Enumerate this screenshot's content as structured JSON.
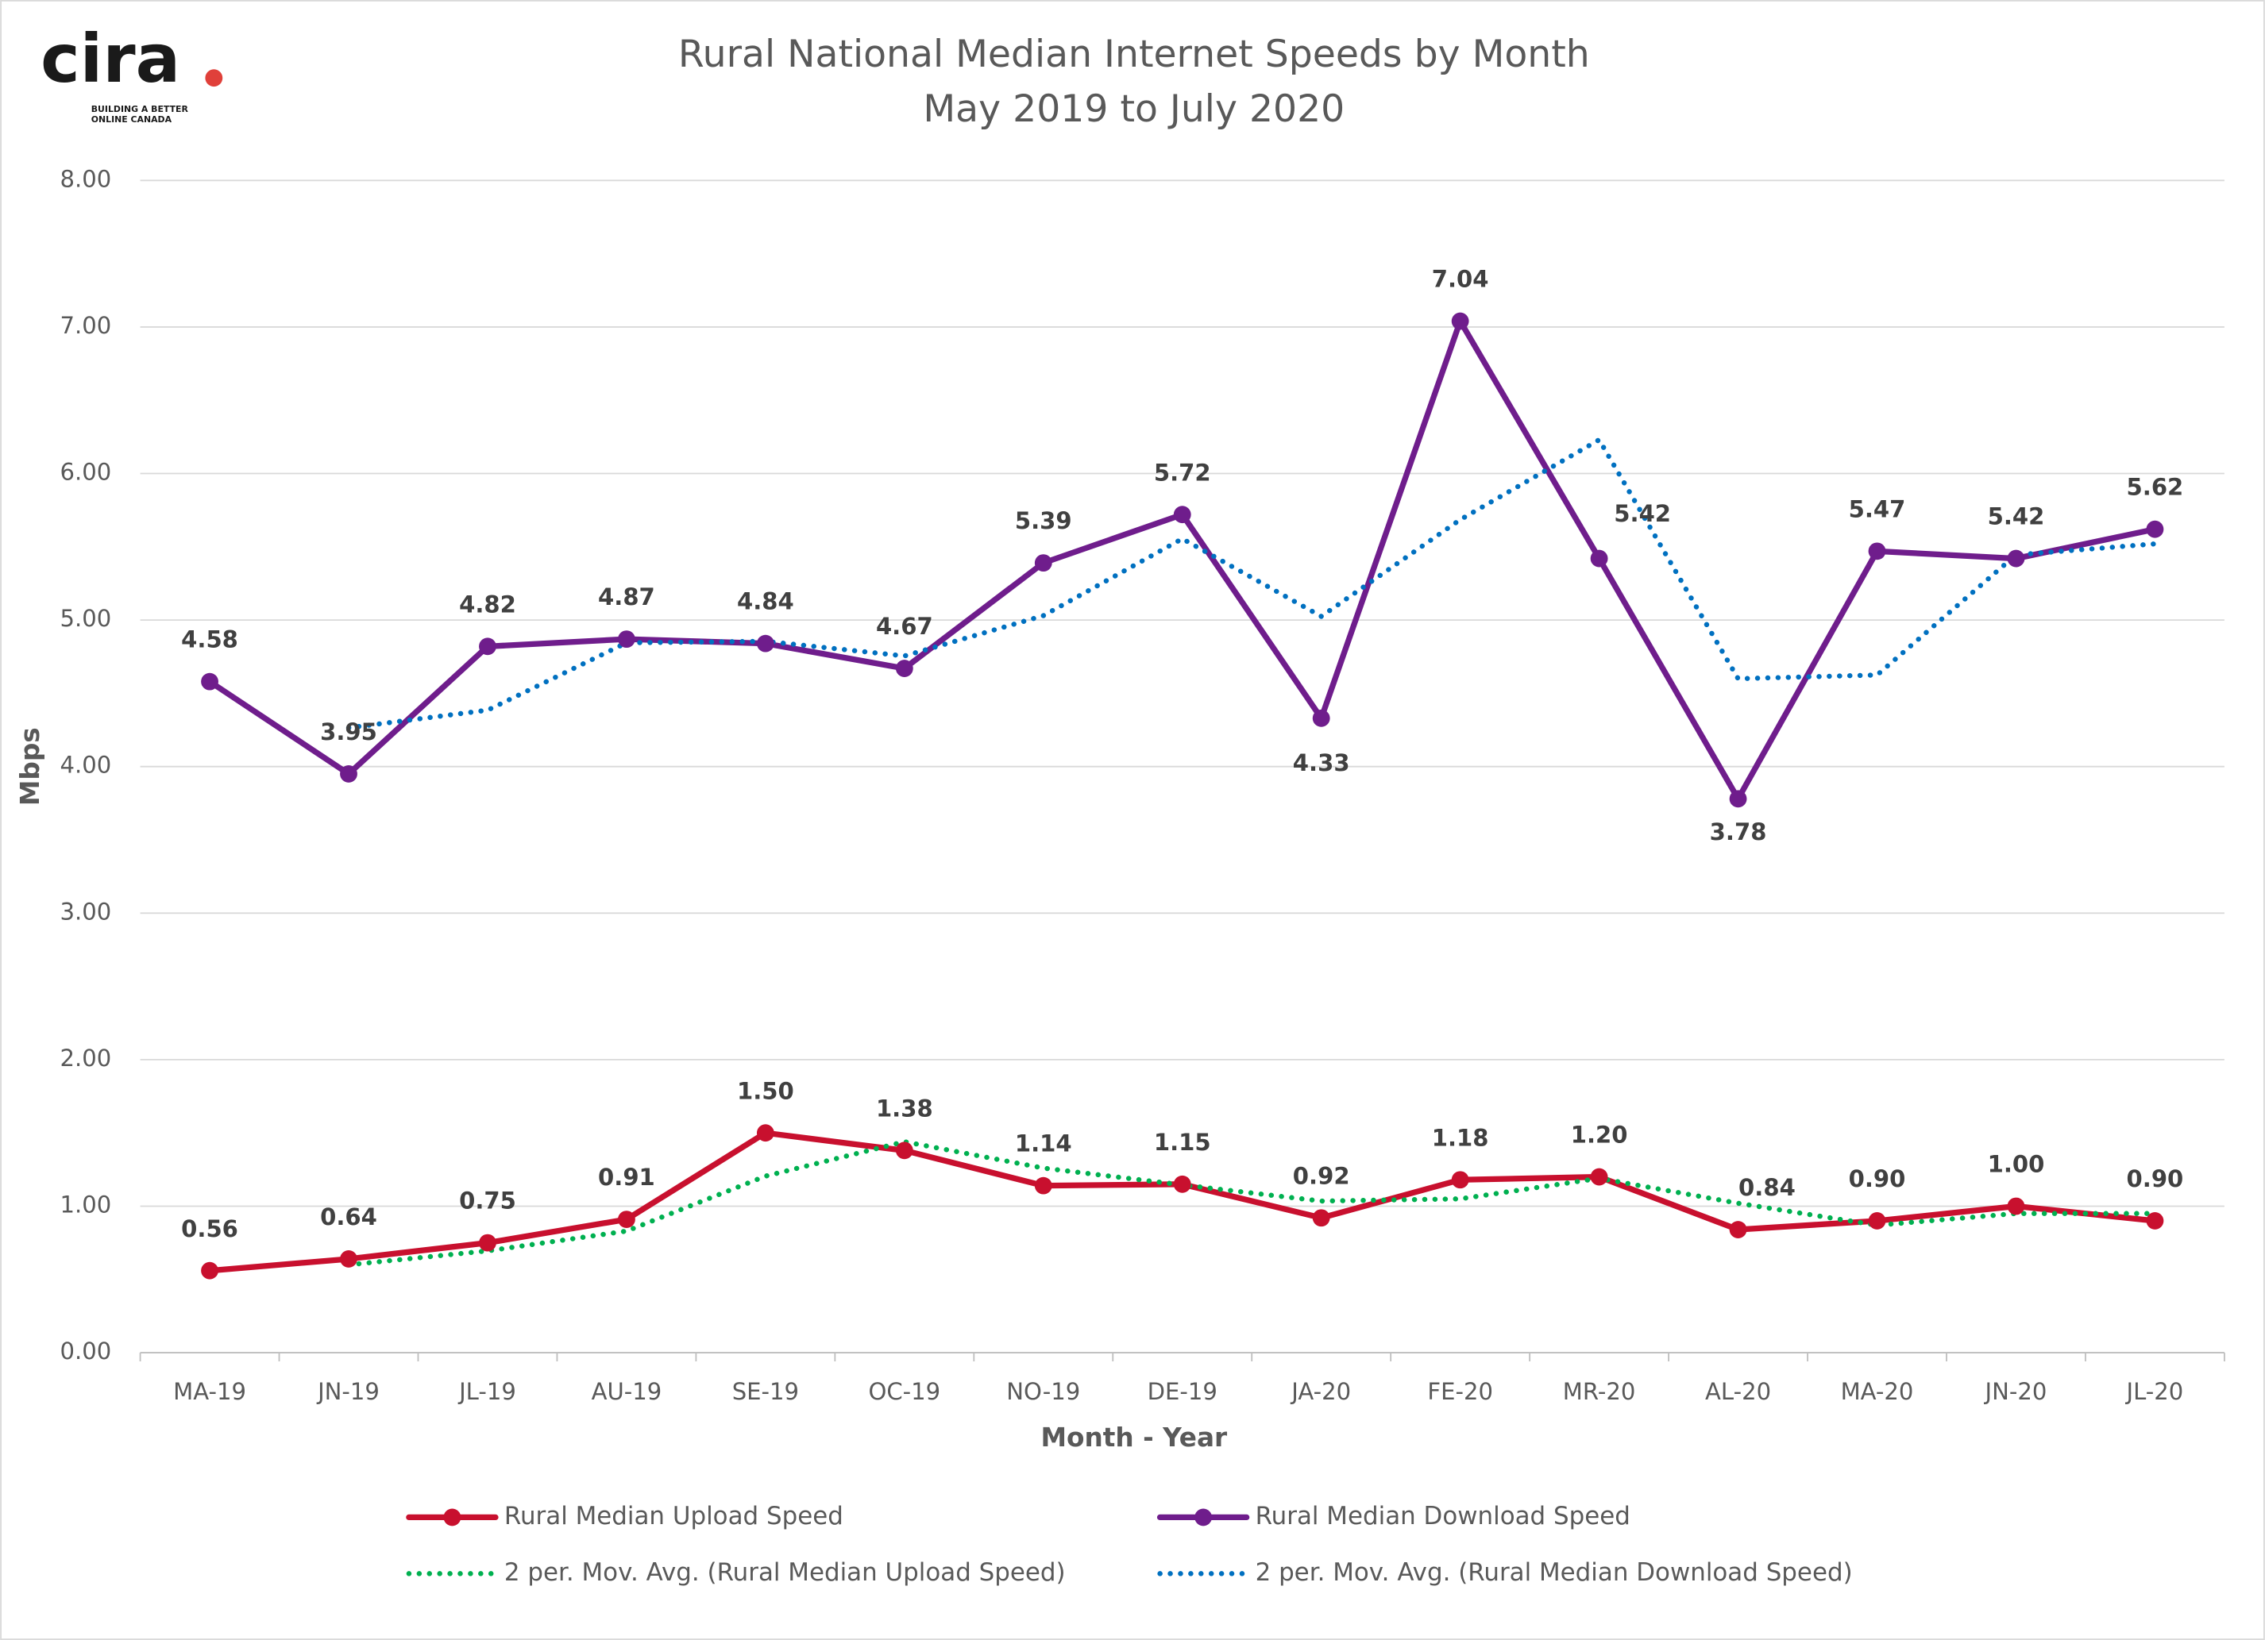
{
  "logo": {
    "name": "cira",
    "tagline_1": "BUILDING A BETTER",
    "tagline_2": "ONLINE CANADA"
  },
  "chart_data": {
    "type": "line",
    "title": "Rural National Median Internet Speeds by Month",
    "subtitle": "May 2019 to July 2020",
    "x_label": "Month - Year",
    "y_label": "Mbps",
    "categories": [
      "MA-19",
      "JN-19",
      "JL-19",
      "AU-19",
      "SE-19",
      "OC-19",
      "NO-19",
      "DE-19",
      "JA-20",
      "FE-20",
      "MR-20",
      "AL-20",
      "MA-20",
      "JN-20",
      "JL-20"
    ],
    "ylim": [
      0,
      8
    ],
    "yticks": [
      {
        "value": 0,
        "label": "0.00"
      },
      {
        "value": 1,
        "label": "1.00"
      },
      {
        "value": 2,
        "label": "2.00"
      },
      {
        "value": 3,
        "label": "3.00"
      },
      {
        "value": 4,
        "label": "4.00"
      },
      {
        "value": 5,
        "label": "5.00"
      },
      {
        "value": 6,
        "label": "6.00"
      },
      {
        "value": 7,
        "label": "7.00"
      },
      {
        "value": 8,
        "label": "8.00"
      }
    ],
    "grid": true,
    "series": [
      {
        "name": "Rural Median Upload Speed",
        "color": "#c8102e",
        "style": "solid",
        "markers": true,
        "values": [
          0.56,
          0.64,
          0.75,
          0.91,
          1.5,
          1.38,
          1.14,
          1.15,
          0.92,
          1.18,
          1.2,
          0.84,
          0.9,
          1.0,
          0.9
        ],
        "value_labels": [
          "0.56",
          "0.64",
          "0.75",
          "0.91",
          "1.50",
          "1.38",
          "1.14",
          "1.15",
          "0.92",
          "1.18",
          "1.20",
          "0.84",
          "0.90",
          "1.00",
          "0.90"
        ]
      },
      {
        "name": "Rural Median Download Speed",
        "color": "#6f1d8c",
        "style": "solid",
        "markers": true,
        "values": [
          4.58,
          3.95,
          4.82,
          4.87,
          4.84,
          4.67,
          5.39,
          5.72,
          4.33,
          7.04,
          5.42,
          3.78,
          5.47,
          5.42,
          5.62
        ],
        "value_labels": [
          "4.58",
          "3.95",
          "4.82",
          "4.87",
          "4.84",
          "4.67",
          "5.39",
          "5.72",
          "4.33",
          "7.04",
          "5.42",
          "3.78",
          "5.47",
          "5.42",
          "5.62"
        ]
      },
      {
        "name": "2 per. Mov. Avg. (Rural Median Upload Speed)",
        "color": "#00b050",
        "style": "dotted",
        "markers": false,
        "values": [
          null,
          0.6,
          0.695,
          0.83,
          1.205,
          1.44,
          1.26,
          1.145,
          1.035,
          1.05,
          1.19,
          1.02,
          0.87,
          0.95,
          0.95
        ]
      },
      {
        "name": "2 per. Mov. Avg. (Rural Median Download Speed)",
        "color": "#0070c0",
        "style": "dotted",
        "markers": false,
        "values": [
          null,
          4.265,
          4.385,
          4.845,
          4.855,
          4.755,
          5.03,
          5.555,
          5.025,
          5.685,
          6.23,
          4.6,
          4.625,
          5.445,
          5.52
        ]
      }
    ]
  }
}
